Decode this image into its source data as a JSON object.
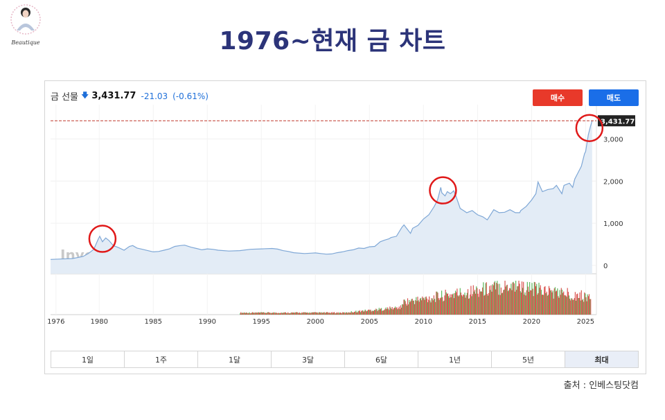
{
  "slide": {
    "title": "1976~현재 금 차트",
    "source": "출처 : 인베스팅닷컴",
    "logo_text": "Beautique"
  },
  "quote": {
    "instrument": "금 선물",
    "price": "3,431.77",
    "change": "-21.03",
    "change_pct": "(-0.61%)",
    "direction": "down"
  },
  "buttons": {
    "buy": "매수",
    "sell": "매도"
  },
  "range_tabs": [
    "1일",
    "1주",
    "1달",
    "3달",
    "6달",
    "1년",
    "5년",
    "최대"
  ],
  "active_range": "최대",
  "watermark": {
    "brand": "Investing",
    "suffix": ".com"
  },
  "colors": {
    "title": "#2c3479",
    "line": "#7ea7d6",
    "area": "#e3ecf6",
    "price_line": "#c0392b",
    "price_tag_bg": "#222222",
    "buy": "#e8392a",
    "sell": "#1a6ee8",
    "vol_up": "#5cb85c",
    "vol_down": "#d9534f",
    "highlight_circle": "#e01919"
  },
  "chart_data": {
    "type": "area",
    "title": "",
    "xlabel": "",
    "ylabel": "",
    "x_ticks": [
      "1976",
      "1980",
      "1985",
      "1990",
      "1995",
      "2000",
      "2005",
      "2010",
      "2015",
      "2020",
      "2025"
    ],
    "y_ticks": [
      "0",
      "1,000",
      "2,000",
      "3,000"
    ],
    "xlim": [
      1975.5,
      2026
    ],
    "ylim": [
      -200,
      3650
    ],
    "current_price_label": "3,431.77",
    "current_price": 3431.77,
    "series": [
      {
        "x": [
          1975.5,
          1976.5,
          1977.5,
          1978.5,
          1979,
          1979.5,
          1979.9,
          1980.05,
          1980.3,
          1980.6,
          1980.9,
          1981.3,
          1981.8,
          1982.3,
          1982.8,
          1983.1,
          1983.5,
          1984,
          1984.5,
          1985,
          1985.5,
          1986,
          1986.5,
          1987,
          1987.5,
          1987.9,
          1988.5,
          1989,
          1989.5,
          1990,
          1990.5,
          1991,
          1992,
          1993,
          1994,
          1995,
          1996,
          1996.5,
          1997,
          1997.5,
          1998,
          1999,
          1999.7,
          2000,
          2000.5,
          2001,
          2001.5,
          2002,
          2002.5,
          2003,
          2003.5,
          2004,
          2004.5,
          2005,
          2005.5,
          2006,
          2006.4,
          2006.8,
          2007,
          2007.5,
          2008,
          2008.2,
          2008.8,
          2009,
          2009.5,
          2010,
          2010.5,
          2011,
          2011.3,
          2011.6,
          2011.7,
          2012,
          2012.2,
          2012.5,
          2012.8,
          2013,
          2013.4,
          2013.7,
          2014,
          2014.5,
          2015,
          2015.5,
          2015.9,
          2016,
          2016.5,
          2017,
          2017.5,
          2018,
          2018.5,
          2018.9,
          2019,
          2019.5,
          2020,
          2020.4,
          2020.6,
          2021,
          2021.5,
          2022,
          2022.3,
          2022.8,
          2023,
          2023.5,
          2023.8,
          2024,
          2024.3,
          2024.6,
          2024.9,
          2025,
          2025.25,
          2025.45,
          2025.6
        ],
        "y": [
          140,
          150,
          160,
          210,
          280,
          380,
          620,
          690,
          560,
          650,
          590,
          470,
          420,
          360,
          450,
          470,
          410,
          380,
          350,
          320,
          330,
          360,
          390,
          450,
          470,
          480,
          430,
          400,
          370,
          390,
          380,
          360,
          340,
          350,
          380,
          390,
          400,
          385,
          350,
          330,
          300,
          280,
          290,
          295,
          280,
          265,
          270,
          300,
          320,
          350,
          370,
          410,
          400,
          440,
          450,
          560,
          600,
          630,
          660,
          690,
          900,
          960,
          760,
          880,
          950,
          1100,
          1200,
          1400,
          1550,
          1850,
          1720,
          1650,
          1750,
          1700,
          1770,
          1650,
          1350,
          1300,
          1250,
          1300,
          1200,
          1150,
          1080,
          1120,
          1320,
          1250,
          1260,
          1320,
          1250,
          1250,
          1300,
          1400,
          1550,
          1700,
          1980,
          1750,
          1800,
          1820,
          1900,
          1700,
          1900,
          1950,
          1850,
          2050,
          2200,
          2350,
          2650,
          2700,
          3100,
          3300,
          3431.77
        ]
      }
    ],
    "highlights": [
      {
        "x": 1980.3,
        "y": 630
      },
      {
        "x": 2011.8,
        "y": 1780
      },
      {
        "x": 2025.35,
        "y": 3260
      }
    ],
    "volume": {
      "x_start": 1993,
      "x_end": 2025.5
    }
  }
}
